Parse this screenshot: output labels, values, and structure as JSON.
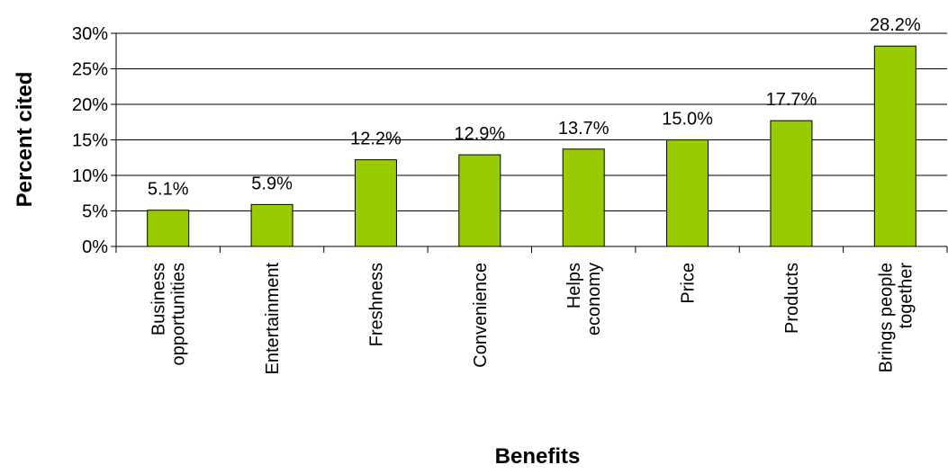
{
  "chart_data": {
    "type": "bar",
    "title": "",
    "xlabel": "Benefits",
    "ylabel": "Percent cited",
    "ylim": [
      0,
      30
    ],
    "yticks": [
      "0%",
      "5%",
      "10%",
      "15%",
      "20%",
      "25%",
      "30%"
    ],
    "grid": true,
    "legend": "none",
    "bar_color": "#99cc00",
    "categories": [
      [
        "Business",
        "opportunities"
      ],
      [
        "Entertainment"
      ],
      [
        "Freshness"
      ],
      [
        "Convenience"
      ],
      [
        "Helps",
        "economy"
      ],
      [
        "Price"
      ],
      [
        "Products"
      ],
      [
        "Brings people",
        "together"
      ]
    ],
    "values": [
      5.1,
      5.9,
      12.2,
      12.9,
      13.7,
      15.0,
      17.7,
      28.2
    ],
    "value_labels": [
      "5.1%",
      "5.9%",
      "12.2%",
      "12.9%",
      "13.7%",
      "15.0%",
      "17.7%",
      "28.2%"
    ]
  }
}
